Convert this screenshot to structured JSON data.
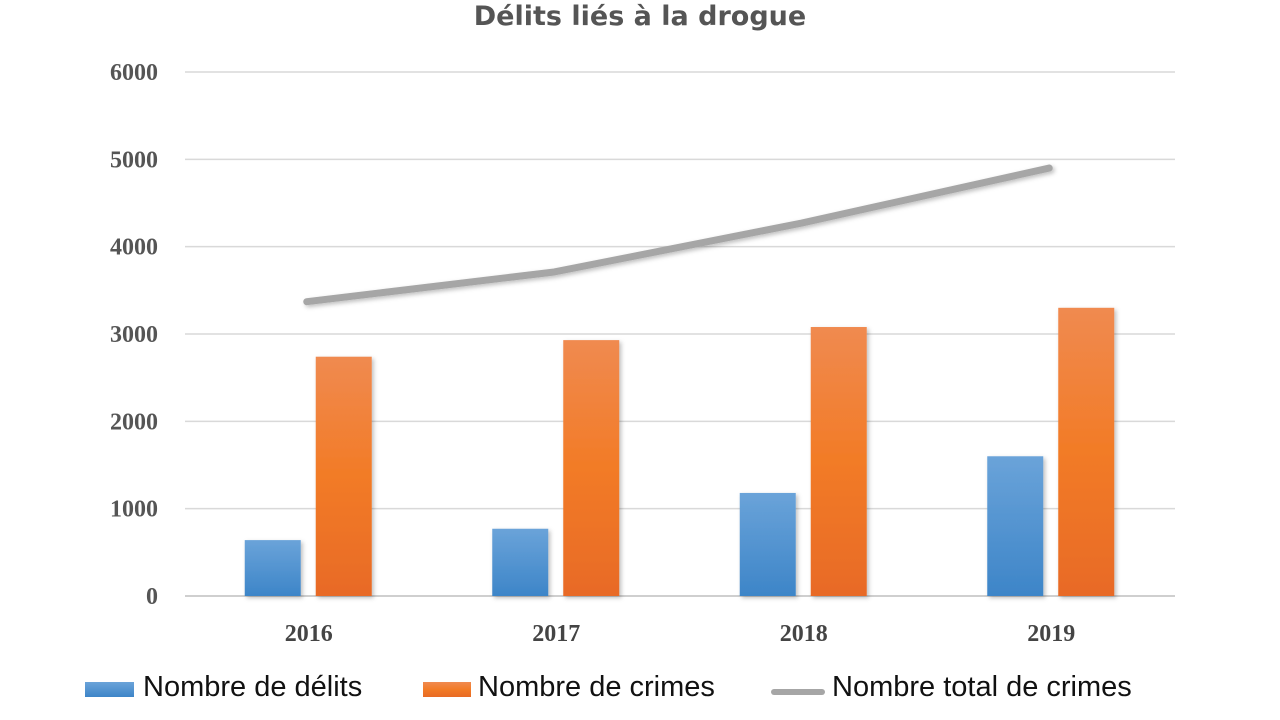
{
  "chart_data": {
    "type": "bar",
    "title": "Délits liés à la drogue",
    "xlabel": "",
    "ylabel": "",
    "categories": [
      "2016",
      "2017",
      "2018",
      "2019"
    ],
    "series": [
      {
        "name": "Nombre de délits",
        "type": "bar",
        "color": "#4a8fd0",
        "values": [
          640,
          770,
          1180,
          1600
        ]
      },
      {
        "name": "Nombre de crimes",
        "type": "bar",
        "color": "#f07a2a",
        "values": [
          2740,
          2930,
          3080,
          3300
        ]
      },
      {
        "name": "Nombre total de crimes",
        "type": "line",
        "color": "#a6a6a6",
        "values": [
          3370,
          3710,
          4270,
          4900
        ]
      }
    ],
    "ylim": [
      0,
      6000
    ],
    "yticks": [
      "0",
      "1000",
      "2000",
      "3000",
      "4000",
      "5000",
      "6000"
    ],
    "grid": true,
    "legend_position": "bottom"
  }
}
